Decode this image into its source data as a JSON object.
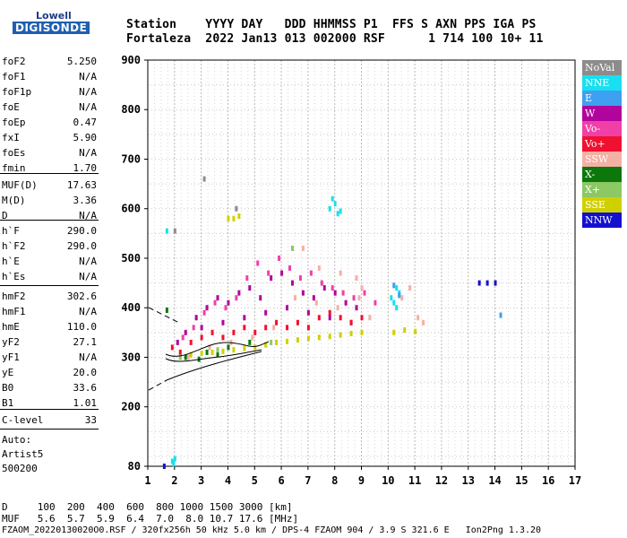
{
  "logo": {
    "line1": "Lowell",
    "line2": "DIGISONDE"
  },
  "header": {
    "row1": "Station    YYYY DAY   DDD HHMMSS P1  FFS S AXN PPS IGA PS",
    "row2": "Fortaleza  2022 Jan13 013 002000 RSF      1 714 100 10+ 11"
  },
  "params": [
    {
      "name": "foF2",
      "value": "5.250"
    },
    {
      "name": "foF1",
      "value": "N/A"
    },
    {
      "name": "foF1p",
      "value": "N/A"
    },
    {
      "name": "foE",
      "value": "N/A"
    },
    {
      "name": "foEp",
      "value": "0.47"
    },
    {
      "name": "fxI",
      "value": "5.90"
    },
    {
      "name": "foEs",
      "value": "N/A"
    },
    {
      "name": "fmin",
      "value": "1.70"
    },
    {
      "name": "MUF(D)",
      "value": "17.63"
    },
    {
      "name": "M(D)",
      "value": "3.36"
    },
    {
      "name": "D",
      "value": "N/A"
    },
    {
      "name": "h`F",
      "value": "290.0"
    },
    {
      "name": "h`F2",
      "value": "290.0"
    },
    {
      "name": "h`E",
      "value": "N/A"
    },
    {
      "name": "h`Es",
      "value": "N/A"
    },
    {
      "name": "hmF2",
      "value": "302.6"
    },
    {
      "name": "hmF1",
      "value": "N/A"
    },
    {
      "name": "hmE",
      "value": "110.0"
    },
    {
      "name": "yF2",
      "value": "27.1"
    },
    {
      "name": "yF1",
      "value": "N/A"
    },
    {
      "name": "yE",
      "value": "20.0"
    },
    {
      "name": "B0",
      "value": "33.6"
    },
    {
      "name": "B1",
      "value": "1.01"
    },
    {
      "name": "C-level",
      "value": "33"
    }
  ],
  "auto": {
    "label": "Auto:",
    "program": "Artist5",
    "version": "500200"
  },
  "legend": [
    {
      "label": "NoVal",
      "color": "#8c8c8c"
    },
    {
      "label": "NNE",
      "color": "#18e0f0"
    },
    {
      "label": "E",
      "color": "#3da0f0"
    },
    {
      "label": "W",
      "color": "#b0049c"
    },
    {
      "label": "Vo-",
      "color": "#f040a8"
    },
    {
      "label": "Vo+",
      "color": "#f01030"
    },
    {
      "label": "SSW",
      "color": "#f4b0a4"
    },
    {
      "label": "X-",
      "color": "#0c780c"
    },
    {
      "label": "X+",
      "color": "#8cc864"
    },
    {
      "label": "SSE",
      "color": "#d0d000"
    },
    {
      "label": "NNW",
      "color": "#1410d0"
    }
  ],
  "bottom": {
    "d_row": "D     100  200  400  600  800 1000 1500 3000 [km]",
    "muf_row": "MUF   5.6  5.7  5.9  6.4  7.0  8.0 10.7 17.6 [MHz]",
    "footer": "FZAOM_20220130020O0.RSF / 320fx256h 50 kHz 5.0 km / DPS-4 FZAOM 904 / 3.9 S 321.6 E   Ion2Png 1.3.20"
  },
  "chart_data": {
    "type": "scatter",
    "xlim": [
      1,
      17
    ],
    "ylim": [
      80,
      900
    ],
    "xticks": [
      1,
      2,
      3,
      4,
      5,
      6,
      7,
      8,
      9,
      10,
      11,
      12,
      13,
      14,
      15,
      16,
      17
    ],
    "yticks": [
      80,
      200,
      300,
      400,
      500,
      600,
      700,
      800,
      900
    ],
    "grid": true,
    "series": [
      {
        "name": "W",
        "color": "#b0049c",
        "points": [
          [
            2.1,
            330
          ],
          [
            2.4,
            350
          ],
          [
            2.8,
            380
          ],
          [
            3.2,
            400
          ],
          [
            3.6,
            420
          ],
          [
            4.0,
            410
          ],
          [
            4.4,
            430
          ],
          [
            4.8,
            440
          ],
          [
            5.2,
            420
          ],
          [
            5.6,
            460
          ],
          [
            6.0,
            470
          ],
          [
            6.4,
            450
          ],
          [
            6.8,
            430
          ],
          [
            7.2,
            420
          ],
          [
            7.6,
            440
          ],
          [
            8.0,
            430
          ],
          [
            8.4,
            410
          ],
          [
            8.8,
            400
          ],
          [
            3.0,
            360
          ],
          [
            3.8,
            370
          ],
          [
            4.6,
            380
          ],
          [
            5.4,
            390
          ],
          [
            6.2,
            400
          ],
          [
            7.0,
            390
          ],
          [
            7.8,
            380
          ],
          [
            8.6,
            370
          ]
        ]
      },
      {
        "name": "Vo-",
        "color": "#f040a8",
        "points": [
          [
            2.3,
            340
          ],
          [
            2.7,
            360
          ],
          [
            3.1,
            390
          ],
          [
            3.5,
            410
          ],
          [
            3.9,
            400
          ],
          [
            4.3,
            420
          ],
          [
            4.7,
            460
          ],
          [
            5.1,
            490
          ],
          [
            5.5,
            470
          ],
          [
            5.9,
            500
          ],
          [
            6.3,
            480
          ],
          [
            6.7,
            460
          ],
          [
            7.1,
            470
          ],
          [
            7.5,
            450
          ],
          [
            7.9,
            440
          ],
          [
            8.3,
            430
          ],
          [
            8.7,
            420
          ],
          [
            9.1,
            430
          ],
          [
            9.5,
            410
          ]
        ]
      },
      {
        "name": "Vo+",
        "color": "#f01030",
        "points": [
          [
            1.9,
            320
          ],
          [
            2.2,
            310
          ],
          [
            2.6,
            330
          ],
          [
            3.0,
            340
          ],
          [
            3.4,
            350
          ],
          [
            3.8,
            340
          ],
          [
            4.2,
            350
          ],
          [
            4.6,
            360
          ],
          [
            5.0,
            350
          ],
          [
            5.4,
            360
          ],
          [
            5.8,
            370
          ],
          [
            6.2,
            360
          ],
          [
            6.6,
            370
          ],
          [
            7.0,
            360
          ],
          [
            7.4,
            380
          ],
          [
            7.8,
            390
          ],
          [
            8.2,
            380
          ],
          [
            8.6,
            370
          ],
          [
            9.0,
            380
          ]
        ]
      },
      {
        "name": "SSW",
        "color": "#f4b0a4",
        "points": [
          [
            2.5,
            300
          ],
          [
            3.3,
            320
          ],
          [
            4.1,
            330
          ],
          [
            4.9,
            340
          ],
          [
            5.7,
            360
          ],
          [
            6.5,
            420
          ],
          [
            7.3,
            410
          ],
          [
            8.1,
            400
          ],
          [
            8.9,
            420
          ],
          [
            9.3,
            380
          ],
          [
            10.5,
            420
          ],
          [
            10.8,
            440
          ],
          [
            11.1,
            380
          ],
          [
            11.3,
            370
          ],
          [
            6.8,
            520
          ],
          [
            7.4,
            480
          ],
          [
            8.2,
            470
          ],
          [
            8.8,
            460
          ],
          [
            9.0,
            440
          ]
        ]
      },
      {
        "name": "SSE",
        "color": "#d0d000",
        "points": [
          [
            2.2,
            300
          ],
          [
            2.6,
            305
          ],
          [
            3.0,
            308
          ],
          [
            3.4,
            310
          ],
          [
            3.8,
            312
          ],
          [
            4.2,
            315
          ],
          [
            4.6,
            318
          ],
          [
            5.0,
            320
          ],
          [
            5.4,
            325
          ],
          [
            5.8,
            330
          ],
          [
            6.2,
            332
          ],
          [
            6.6,
            335
          ],
          [
            7.0,
            338
          ],
          [
            7.4,
            340
          ],
          [
            7.8,
            342
          ],
          [
            8.2,
            345
          ],
          [
            8.6,
            348
          ],
          [
            9.0,
            350
          ],
          [
            10.2,
            350
          ],
          [
            10.6,
            355
          ],
          [
            11.0,
            352
          ],
          [
            4.2,
            580
          ],
          [
            4.4,
            585
          ],
          [
            4.0,
            580
          ]
        ]
      },
      {
        "name": "NNE",
        "color": "#18e0f0",
        "points": [
          [
            7.8,
            600
          ],
          [
            8.0,
            610
          ],
          [
            8.2,
            595
          ],
          [
            7.9,
            620
          ],
          [
            8.1,
            590
          ],
          [
            10.1,
            420
          ],
          [
            10.3,
            440
          ],
          [
            10.2,
            410
          ],
          [
            10.4,
            430
          ],
          [
            10.3,
            400
          ],
          [
            1.9,
            90
          ],
          [
            2.0,
            95
          ],
          [
            1.95,
            85
          ],
          [
            1.7,
            555
          ]
        ]
      },
      {
        "name": "E",
        "color": "#3da0f0",
        "points": [
          [
            10.2,
            445
          ],
          [
            10.4,
            425
          ],
          [
            14.2,
            385
          ]
        ]
      },
      {
        "name": "X-",
        "color": "#0c780c",
        "points": [
          [
            1.7,
            395
          ],
          [
            2.4,
            300
          ],
          [
            3.2,
            310
          ],
          [
            4.0,
            320
          ],
          [
            4.8,
            330
          ],
          [
            2.9,
            296
          ],
          [
            3.6,
            306
          ]
        ]
      },
      {
        "name": "X+",
        "color": "#8cc864",
        "points": [
          [
            2.2,
            300
          ],
          [
            3.6,
            315
          ],
          [
            5.6,
            330
          ],
          [
            6.4,
            520
          ]
        ]
      },
      {
        "name": "NNW",
        "color": "#1410d0",
        "points": [
          [
            13.4,
            450
          ],
          [
            13.7,
            450
          ],
          [
            14.0,
            450
          ],
          [
            1.6,
            80
          ]
        ]
      },
      {
        "name": "NoVal",
        "color": "#8c8c8c",
        "points": [
          [
            2.0,
            555
          ],
          [
            4.3,
            600
          ],
          [
            3.1,
            660
          ]
        ]
      }
    ]
  }
}
